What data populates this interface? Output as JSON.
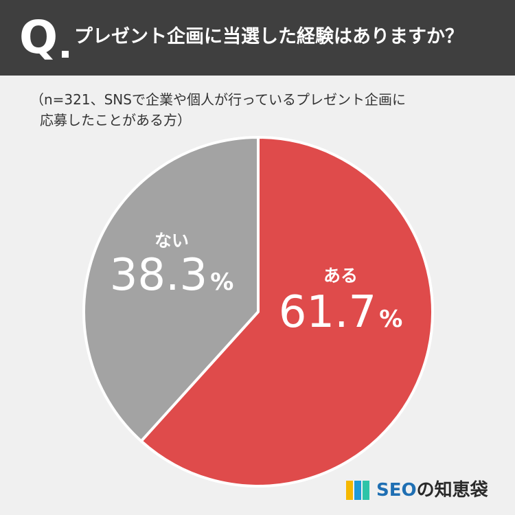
{
  "header": {
    "q_label": "Q",
    "question": "プレゼント企画に当選した経験はありますか？"
  },
  "note": {
    "line1": "（n=321、SNSで企業や個人が行っているプレゼント企画に",
    "line2": "応募したことがある方）"
  },
  "chart_data": {
    "type": "pie",
    "title": "プレゼント企画に当選した経験はありますか？",
    "slices": [
      {
        "label": "ある",
        "value": 61.7,
        "display": "61.7",
        "unit": "%",
        "color": "#df4b4b"
      },
      {
        "label": "ない",
        "value": 38.3,
        "display": "38.3",
        "unit": "%",
        "color": "#a3a3a3"
      }
    ],
    "start": "12 o'clock, clockwise",
    "legend": "none, labels inside slices"
  },
  "logo": {
    "brand": "SEO",
    "suffix": "の知恵袋",
    "icon_colors": [
      "#f5b800",
      "#1f9ad6",
      "#2ec4a8"
    ]
  }
}
